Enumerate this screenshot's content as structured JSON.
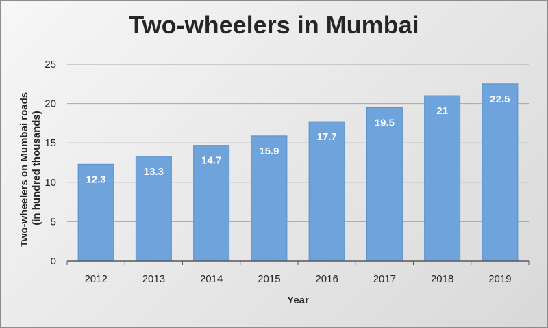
{
  "chart_data": {
    "type": "bar",
    "title": "Two-wheelers in Mumbai",
    "xlabel": "Year",
    "ylabel_lines": [
      "Two-wheelers on Mumbai roads",
      "(in hundred thousands)"
    ],
    "categories": [
      "2012",
      "2013",
      "2014",
      "2015",
      "2016",
      "2017",
      "2018",
      "2019"
    ],
    "values": [
      12.3,
      13.3,
      14.7,
      15.9,
      17.7,
      19.5,
      21,
      22.5
    ],
    "data_labels": [
      "12.3",
      "13.3",
      "14.7",
      "15.9",
      "17.7",
      "19.5",
      "21",
      "22.5"
    ],
    "ylim": [
      0,
      25
    ],
    "yticks": [
      0,
      5,
      10,
      15,
      20,
      25
    ],
    "grid": true,
    "legend": "none",
    "colors": {
      "bar": "#6fa3dc",
      "bar_stroke": "#5b8fc9",
      "grid": "#a6a6a6",
      "axis": "#595959",
      "text": "#262626"
    }
  }
}
